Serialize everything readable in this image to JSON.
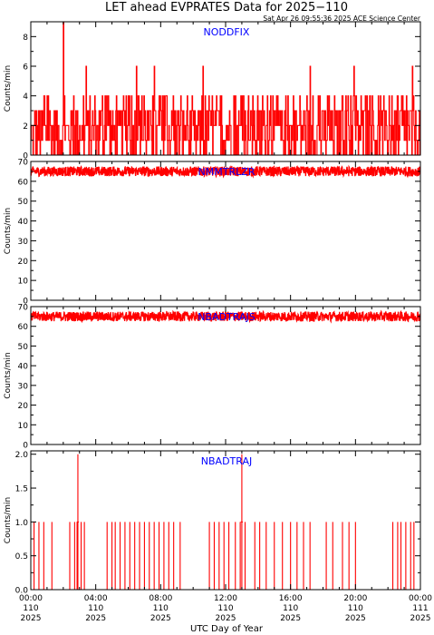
{
  "header": {
    "title": "LET ahead EVPRATES Data for 2025−110",
    "timestamp": "Sat Apr 26 09:55:36 2025 ACE Science Center"
  },
  "x_axis": {
    "label": "UTC Day of Year",
    "range_hours": [
      0,
      24
    ],
    "ticks": [
      {
        "time": "00:00",
        "day": "110",
        "year": "2025",
        "hour": 0
      },
      {
        "time": "04:00",
        "day": "110",
        "year": "2025",
        "hour": 4
      },
      {
        "time": "08:00",
        "day": "110",
        "year": "2025",
        "hour": 8
      },
      {
        "time": "12:00",
        "day": "110",
        "year": "2025",
        "hour": 12
      },
      {
        "time": "16:00",
        "day": "110",
        "year": "2025",
        "hour": 16
      },
      {
        "time": "20:00",
        "day": "110",
        "year": "2025",
        "hour": 20
      },
      {
        "time": "00:00",
        "day": "111",
        "year": "2025",
        "hour": 24
      }
    ]
  },
  "colors": {
    "data": "#ff0000",
    "label": "#0000ff",
    "axis": "#000000"
  },
  "chart_data": [
    {
      "type": "line",
      "title": "NODDFIX",
      "ylabel": "Counts/min",
      "ylim": [
        0,
        9
      ],
      "yticks": [
        0,
        2,
        4,
        6,
        8
      ],
      "ytick_labels": [
        "0",
        "2",
        "4",
        "6",
        "8"
      ],
      "minor_ticks": [
        1,
        3,
        5,
        7,
        9
      ],
      "grid": false,
      "series": [
        {
          "kind": "noise",
          "base": 1,
          "spread": 3,
          "peaks": [
            {
              "x": 2.0,
              "y": 9
            },
            {
              "x": 3.4,
              "y": 6
            },
            {
              "x": 6.5,
              "y": 6
            },
            {
              "x": 7.6,
              "y": 6
            },
            {
              "x": 10.6,
              "y": 6
            },
            {
              "x": 17.2,
              "y": 6
            },
            {
              "x": 19.9,
              "y": 6
            },
            {
              "x": 23.5,
              "y": 6
            }
          ]
        }
      ]
    },
    {
      "type": "line",
      "title": "NMMTRLZR",
      "ylabel": "Counts/min",
      "ylim": [
        0,
        70
      ],
      "yticks": [
        0,
        10,
        20,
        30,
        40,
        50,
        60,
        70
      ],
      "ytick_labels": [
        "0",
        "10",
        "20",
        "30",
        "40",
        "50",
        "60",
        "70"
      ],
      "minor_ticks": [
        5,
        15,
        25,
        35,
        45,
        55,
        65
      ],
      "grid": false,
      "series": [
        {
          "kind": "band",
          "mean": 65,
          "spread": 2.5
        }
      ]
    },
    {
      "type": "line",
      "title": "NBADTRAJS",
      "ylabel": "Counts/min",
      "ylim": [
        0,
        70
      ],
      "yticks": [
        0,
        10,
        20,
        30,
        40,
        50,
        60,
        70
      ],
      "ytick_labels": [
        "0",
        "10",
        "20",
        "30",
        "40",
        "50",
        "60",
        "70"
      ],
      "minor_ticks": [
        5,
        15,
        25,
        35,
        45,
        55,
        65
      ],
      "grid": false,
      "series": [
        {
          "kind": "band",
          "mean": 65,
          "spread": 2.5
        }
      ]
    },
    {
      "type": "line",
      "title": "NBADTRAJ",
      "ylabel": "Counts/min",
      "ylim": [
        0,
        2.05
      ],
      "yticks": [
        0,
        0.5,
        1,
        1.5,
        2
      ],
      "ytick_labels": [
        "0.0",
        "0.5",
        "1.0",
        "1.5",
        "2.0"
      ],
      "minor_ticks": [
        0.25,
        0.75,
        1.25,
        1.75
      ],
      "grid": false,
      "series": [
        {
          "kind": "spikes",
          "level": 1,
          "spikes": [
            0.2,
            0.5,
            0.8,
            1.3,
            2.4,
            2.7,
            2.85,
            3.1,
            3.3,
            4.7,
            5.0,
            5.2,
            5.5,
            5.8,
            6.1,
            6.4,
            6.7,
            7.0,
            7.3,
            7.6,
            7.9,
            8.2,
            8.5,
            8.8,
            9.2,
            11.0,
            11.3,
            11.6,
            11.9,
            12.2,
            12.6,
            12.9,
            13.2,
            13.8,
            14.1,
            14.5,
            15.0,
            15.5,
            16.0,
            16.4,
            16.8,
            17.2,
            18.2,
            18.6,
            19.2,
            19.6,
            20.0,
            22.3,
            22.6,
            22.8,
            23.1,
            23.4,
            23.6
          ],
          "doubles": [
            2.9,
            13.0
          ]
        }
      ]
    }
  ]
}
